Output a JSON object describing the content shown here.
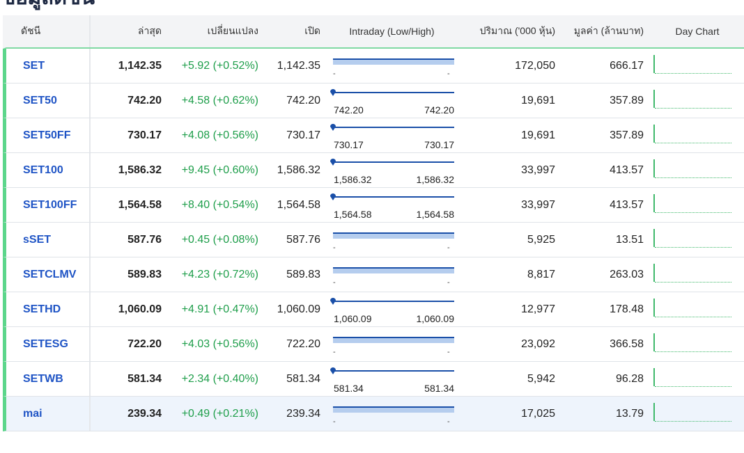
{
  "page": {
    "title": "ข้อมูลดัชนี"
  },
  "table": {
    "headers": {
      "name": "ดัชนี",
      "last": "ล่าสุด",
      "change": "เปลี่ยนแปลง",
      "open": "เปิด",
      "intraday": "Intraday (Low/High)",
      "volume": "ปริมาณ ('000 หุ้น)",
      "value": "มูลค่า (ล้านบาท)",
      "day_chart": "Day Chart"
    },
    "rows": [
      {
        "name": "SET",
        "last": "1,142.35",
        "change": "+5.92 (+0.52%)",
        "open": "1,142.35",
        "low": "-",
        "high": "-",
        "volume": "172,050",
        "value": "666.17"
      },
      {
        "name": "SET50",
        "last": "742.20",
        "change": "+4.58 (+0.62%)",
        "open": "742.20",
        "low": "742.20",
        "high": "742.20",
        "volume": "19,691",
        "value": "357.89"
      },
      {
        "name": "SET50FF",
        "last": "730.17",
        "change": "+4.08 (+0.56%)",
        "open": "730.17",
        "low": "730.17",
        "high": "730.17",
        "volume": "19,691",
        "value": "357.89"
      },
      {
        "name": "SET100",
        "last": "1,586.32",
        "change": "+9.45 (+0.60%)",
        "open": "1,586.32",
        "low": "1,586.32",
        "high": "1,586.32",
        "volume": "33,997",
        "value": "413.57"
      },
      {
        "name": "SET100FF",
        "last": "1,564.58",
        "change": "+8.40 (+0.54%)",
        "open": "1,564.58",
        "low": "1,564.58",
        "high": "1,564.58",
        "volume": "33,997",
        "value": "413.57"
      },
      {
        "name": "sSET",
        "last": "587.76",
        "change": "+0.45 (+0.08%)",
        "open": "587.76",
        "low": "-",
        "high": "-",
        "volume": "5,925",
        "value": "13.51"
      },
      {
        "name": "SETCLMV",
        "last": "589.83",
        "change": "+4.23 (+0.72%)",
        "open": "589.83",
        "low": "-",
        "high": "-",
        "volume": "8,817",
        "value": "263.03"
      },
      {
        "name": "SETHD",
        "last": "1,060.09",
        "change": "+4.91 (+0.47%)",
        "open": "1,060.09",
        "low": "1,060.09",
        "high": "1,060.09",
        "volume": "12,977",
        "value": "178.48"
      },
      {
        "name": "SETESG",
        "last": "722.20",
        "change": "+4.03 (+0.56%)",
        "open": "722.20",
        "low": "-",
        "high": "-",
        "volume": "23,092",
        "value": "366.58"
      },
      {
        "name": "SETWB",
        "last": "581.34",
        "change": "+2.34 (+0.40%)",
        "open": "581.34",
        "low": "581.34",
        "high": "581.34",
        "volume": "5,942",
        "value": "96.28"
      },
      {
        "name": "mai",
        "last": "239.34",
        "change": "+0.49 (+0.21%)",
        "open": "239.34",
        "low": "-",
        "high": "-",
        "volume": "17,025",
        "value": "13.79"
      }
    ]
  },
  "colors": {
    "positive": "#1e9e4a",
    "index_link": "#1f54c5",
    "accent_green": "#5cd68b",
    "range_bar": "#1a4fa8"
  }
}
